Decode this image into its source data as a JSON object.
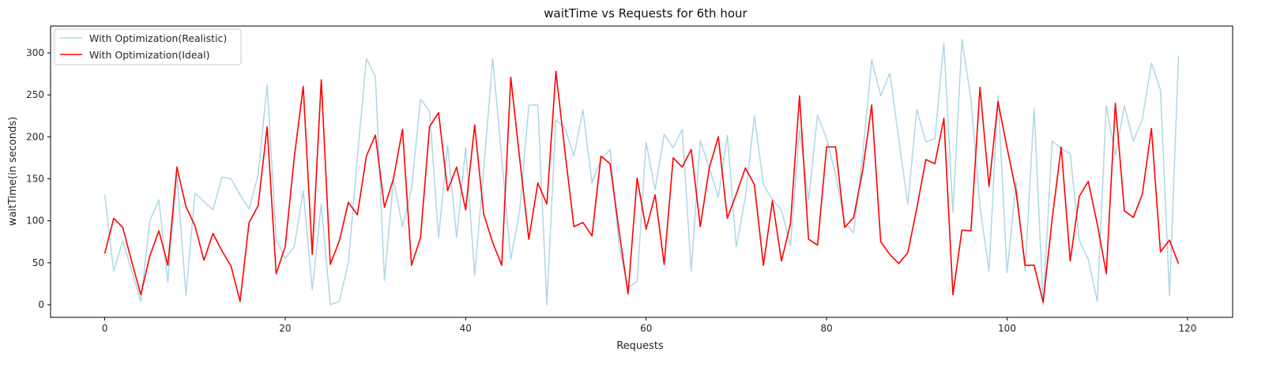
{
  "chart_data": {
    "type": "line",
    "title": "waitTime vs Requests for 6th hour",
    "xlabel": "Requests",
    "ylabel": "waitTime(in seconds)",
    "xlim": [
      -6,
      125
    ],
    "ylim": [
      -15,
      332
    ],
    "xticks": [
      0,
      20,
      40,
      60,
      80,
      100,
      120
    ],
    "yticks": [
      0,
      50,
      100,
      150,
      200,
      250,
      300
    ],
    "grid": false,
    "legend_position": "top-left",
    "series": [
      {
        "name": "With Optimization(Realistic)",
        "color": "#add8e6",
        "values": [
          131,
          40,
          76,
          40,
          4,
          100,
          125,
          27,
          155,
          11,
          133,
          123,
          113,
          152,
          150,
          131,
          114,
          155,
          262,
          79,
          55,
          69,
          136,
          18,
          120,
          0,
          4,
          50,
          175,
          293,
          272,
          29,
          150,
          93,
          138,
          245,
          231,
          80,
          190,
          80,
          187,
          35,
          161,
          293,
          175,
          54,
          113,
          238,
          238,
          0,
          220,
          211,
          177,
          232,
          145,
          173,
          185,
          70,
          20,
          28,
          193,
          137,
          203,
          187,
          209,
          40,
          196,
          163,
          128,
          202,
          69,
          128,
          225,
          143,
          125,
          113,
          70,
          208,
          125,
          226,
          198,
          155,
          99,
          85,
          178,
          292,
          249,
          276,
          197,
          120,
          233,
          194,
          198,
          312,
          110,
          316,
          245,
          117,
          40,
          249,
          38,
          146,
          40,
          234,
          0,
          195,
          186,
          180,
          77,
          54,
          4,
          237,
          178,
          237,
          195,
          221,
          288,
          256,
          11,
          296
        ]
      },
      {
        "name": "With Optimization(Ideal)",
        "color": "#ff0000",
        "values": [
          61,
          103,
          92,
          51,
          12,
          58,
          88,
          47,
          164,
          117,
          94,
          53,
          85,
          64,
          46,
          4,
          98,
          118,
          212,
          37,
          69,
          175,
          260,
          60,
          268,
          48,
          76,
          122,
          107,
          177,
          202,
          116,
          150,
          209,
          47,
          80,
          212,
          229,
          136,
          164,
          113,
          214,
          108,
          74,
          47,
          271,
          173,
          78,
          145,
          120,
          278,
          183,
          93,
          98,
          82,
          177,
          168,
          88,
          13,
          151,
          90,
          131,
          48,
          175,
          164,
          185,
          93,
          163,
          200,
          103,
          132,
          163,
          143,
          47,
          124,
          52,
          97,
          249,
          78,
          71,
          188,
          188,
          92,
          104,
          160,
          238,
          75,
          60,
          49,
          62,
          115,
          173,
          168,
          222,
          12,
          89,
          88,
          259,
          141,
          242,
          187,
          135,
          47,
          47,
          3,
          102,
          188,
          52,
          129,
          147,
          96,
          37,
          240,
          112,
          104,
          132,
          210,
          63,
          77,
          49
        ]
      }
    ]
  }
}
